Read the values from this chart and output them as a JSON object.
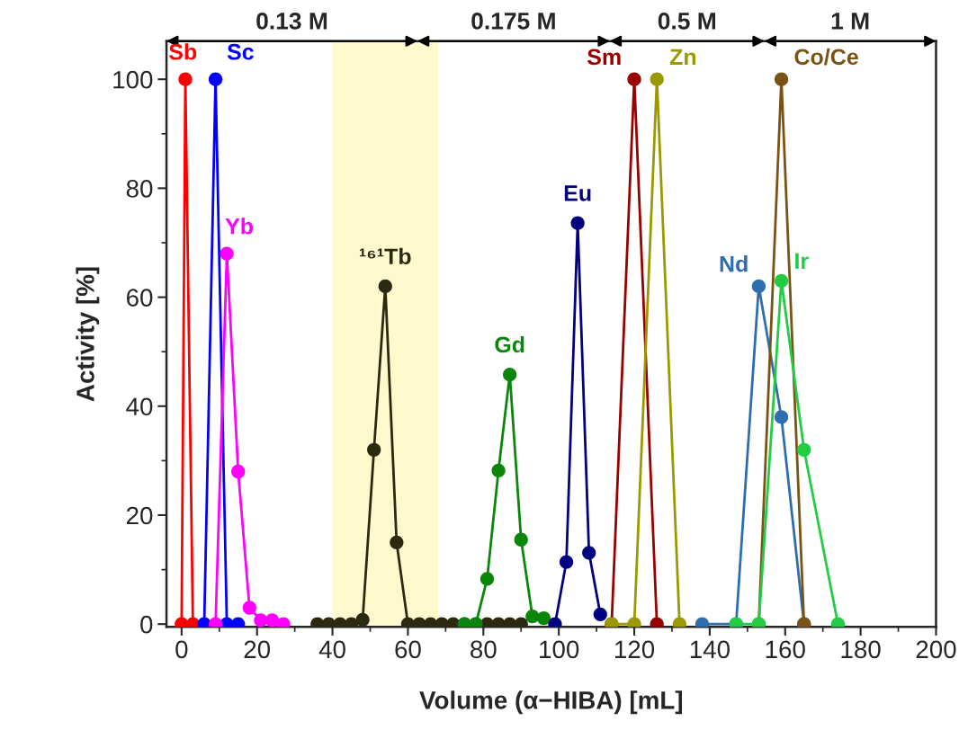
{
  "chart_data": {
    "type": "line",
    "xlabel": "Volume (α−HIBA) [mL]",
    "ylabel": "Activity [%]",
    "xlim": [
      -4,
      200
    ],
    "xticks": [
      0,
      20,
      40,
      60,
      80,
      100,
      120,
      140,
      160,
      180,
      200
    ],
    "ylim": [
      -0.5,
      107
    ],
    "yticks": [
      0,
      20,
      40,
      60,
      80,
      100
    ],
    "marker": "circle",
    "line_style": "solid",
    "grid": false,
    "legend": false,
    "bands": [
      {
        "axis": "x",
        "from": 40,
        "to": 68,
        "color": "#fffacd"
      }
    ],
    "annotations": [
      "0.13 M",
      "0.175 M",
      "0.5 M",
      "1 M"
    ],
    "series": [
      {
        "name": "Sb",
        "color": "#ff0000",
        "x": [
          0,
          1,
          3
        ],
        "values": [
          0,
          100,
          0
        ]
      },
      {
        "name": "Sc",
        "color": "#0000ff",
        "x": [
          6,
          9,
          12,
          15
        ],
        "values": [
          0,
          100,
          0,
          0
        ]
      },
      {
        "name": "Yb",
        "color": "#ff00ff",
        "x": [
          9,
          12,
          15,
          18,
          21,
          24,
          27
        ],
        "values": [
          0,
          68,
          28,
          3,
          0.7,
          0.7,
          0
        ]
      },
      {
        "name": "¹⁶¹Tb",
        "color": "#2b2a10",
        "x": [
          36,
          39,
          42,
          45,
          48,
          51,
          54,
          57,
          60,
          63,
          66,
          69,
          72,
          75,
          78,
          81,
          84,
          87,
          90
        ],
        "values": [
          0,
          0,
          0,
          0,
          0.8,
          32,
          62,
          15,
          0,
          0,
          0,
          0,
          0,
          0,
          0,
          0,
          0,
          0,
          0
        ]
      },
      {
        "name": "Gd",
        "color": "#0a870a",
        "x": [
          75,
          78,
          81,
          84,
          87,
          90,
          93,
          96
        ],
        "values": [
          0,
          0,
          8.3,
          28.2,
          45.8,
          15.5,
          1.4,
          1.1
        ]
      },
      {
        "name": "Eu",
        "color": "#000080",
        "x": [
          99,
          102,
          105,
          108,
          111
        ],
        "values": [
          0,
          11.4,
          73.6,
          13.1,
          1.8
        ]
      },
      {
        "name": "Sm",
        "color": "#990000",
        "x": [
          114,
          120,
          126
        ],
        "values": [
          0,
          100,
          0
        ]
      },
      {
        "name": "Zn",
        "color": "#9a9a00",
        "x": [
          114,
          120,
          126,
          132
        ],
        "values": [
          0,
          0,
          100,
          0
        ]
      },
      {
        "name": "Nd",
        "color": "#2e6db0",
        "x": [
          138,
          147,
          153,
          159,
          165
        ],
        "values": [
          0,
          0,
          62,
          38,
          0
        ]
      },
      {
        "name": "Co/Ce",
        "color": "#7a5214",
        "x": [
          153,
          159,
          165
        ],
        "values": [
          0,
          100,
          0
        ]
      },
      {
        "name": "Ir",
        "color": "#22cc44",
        "x": [
          147,
          153,
          159,
          165,
          174
        ],
        "values": [
          0,
          0,
          63,
          32,
          0
        ]
      }
    ]
  }
}
